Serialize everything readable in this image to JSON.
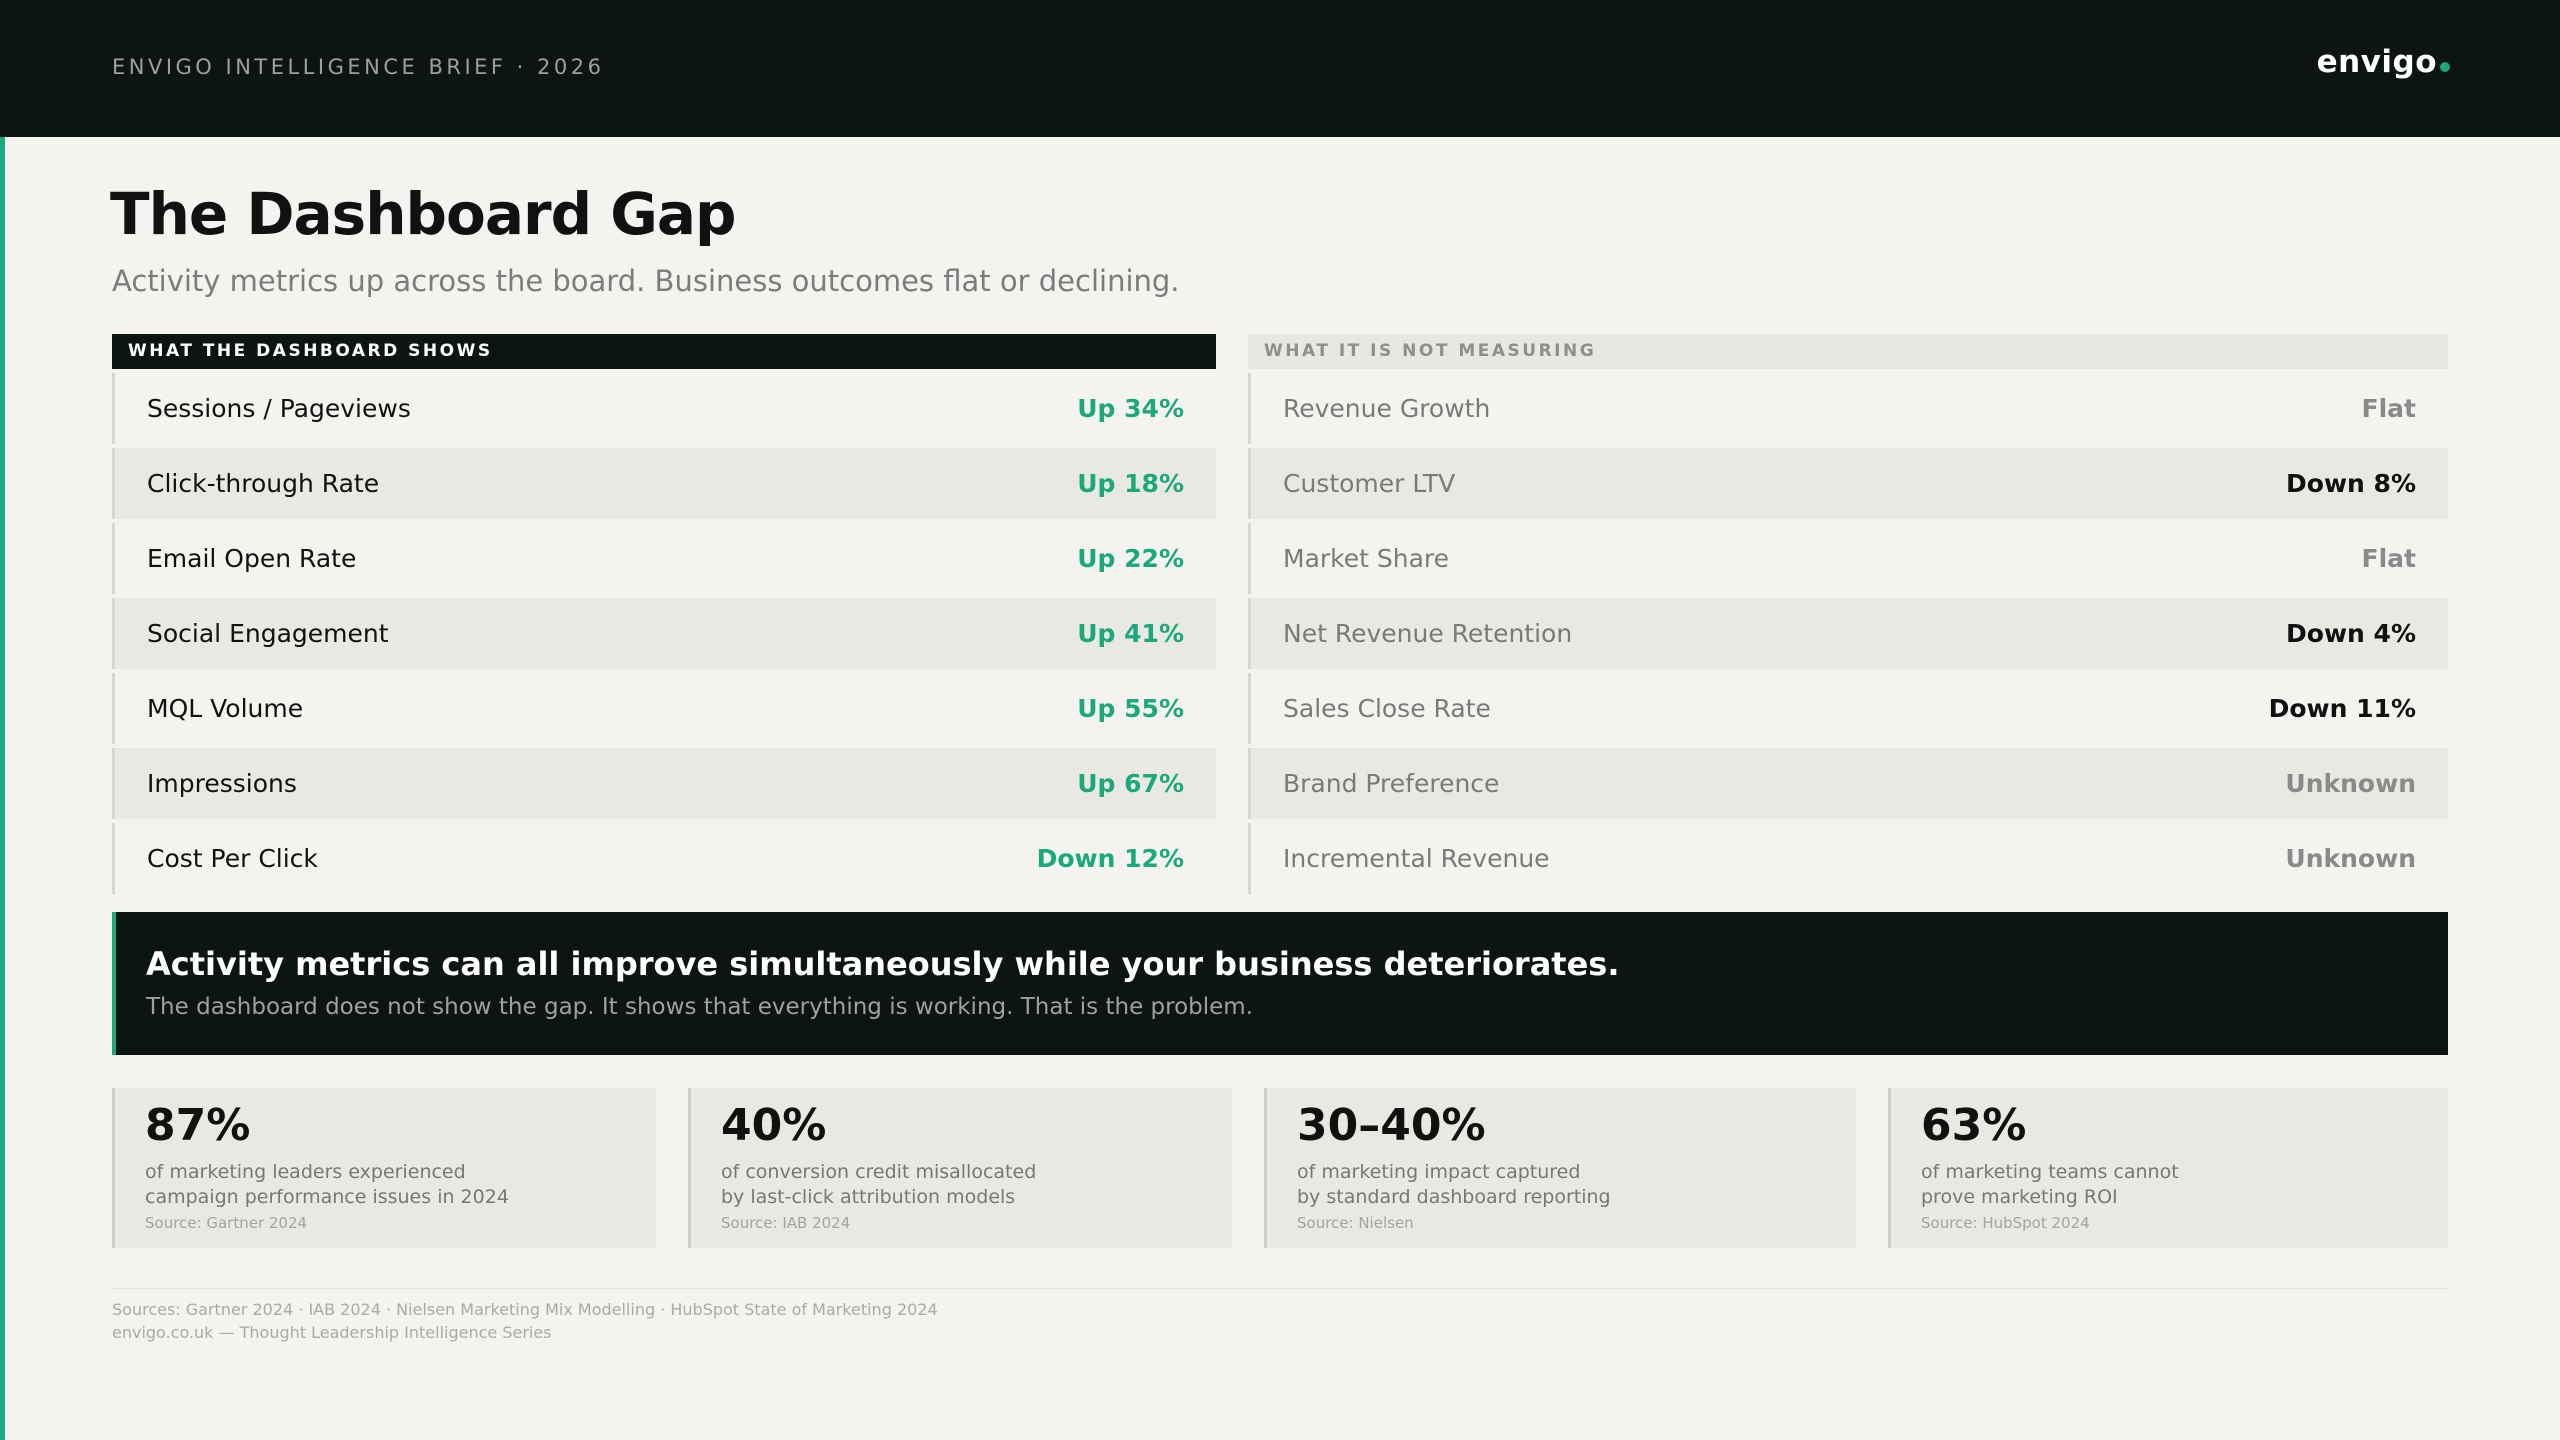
{
  "header": {
    "brief": "ENVIGO INTELLIGENCE BRIEF · 2026",
    "logo": "envigo",
    "accent_color": "#1aa87c",
    "background_color": "#0d1513"
  },
  "page": {
    "title": "The Dashboard Gap",
    "subtitle": "Activity metrics up across the board. Business outcomes flat or declining."
  },
  "left_column": {
    "heading": "WHAT THE DASHBOARD SHOWS",
    "rows": [
      {
        "label": "Sessions / Pageviews",
        "value": "Up 34%"
      },
      {
        "label": "Click-through Rate",
        "value": "Up 18%"
      },
      {
        "label": "Email Open Rate",
        "value": "Up 22%"
      },
      {
        "label": "Social Engagement",
        "value": "Up 41%"
      },
      {
        "label": "MQL Volume",
        "value": "Up 55%"
      },
      {
        "label": "Impressions",
        "value": "Up 67%"
      },
      {
        "label": "Cost Per Click",
        "value": "Down 12%"
      }
    ]
  },
  "right_column": {
    "heading": "WHAT IT IS NOT MEASURING",
    "rows": [
      {
        "label": "Revenue Growth",
        "value": "Flat"
      },
      {
        "label": "Customer LTV",
        "value": "Down 8%"
      },
      {
        "label": "Market Share",
        "value": "Flat"
      },
      {
        "label": "Net Revenue Retention",
        "value": "Down 4%"
      },
      {
        "label": "Sales Close Rate",
        "value": "Down 11%"
      },
      {
        "label": "Brand Preference",
        "value": "Unknown"
      },
      {
        "label": "Incremental Revenue",
        "value": "Unknown"
      }
    ]
  },
  "callout": {
    "headline": "Activity metrics can all improve simultaneously while your business deteriorates.",
    "subline": "The dashboard does not show the gap. It shows that everything is working. That is the problem."
  },
  "stats": [
    {
      "value": "87%",
      "line1": "of marketing leaders experienced",
      "line2": "campaign performance issues in 2024",
      "source": "Source: Gartner 2024"
    },
    {
      "value": "40%",
      "line1": "of conversion credit misallocated",
      "line2": "by last-click attribution models",
      "source": "Source: IAB 2024"
    },
    {
      "value": "30–40%",
      "line1": "of marketing impact captured",
      "line2": "by standard dashboard reporting",
      "source": "Source: Nielsen"
    },
    {
      "value": "63%",
      "line1": "of marketing teams cannot",
      "line2": "prove marketing ROI",
      "source": "Source: HubSpot 2024"
    }
  ],
  "footer": {
    "sources": "Sources: Gartner 2024 · IAB 2024 · Nielsen Marketing Mix Modelling · HubSpot State of Marketing 2024",
    "credit": "envigo.co.uk — Thought Leadership Intelligence Series"
  }
}
